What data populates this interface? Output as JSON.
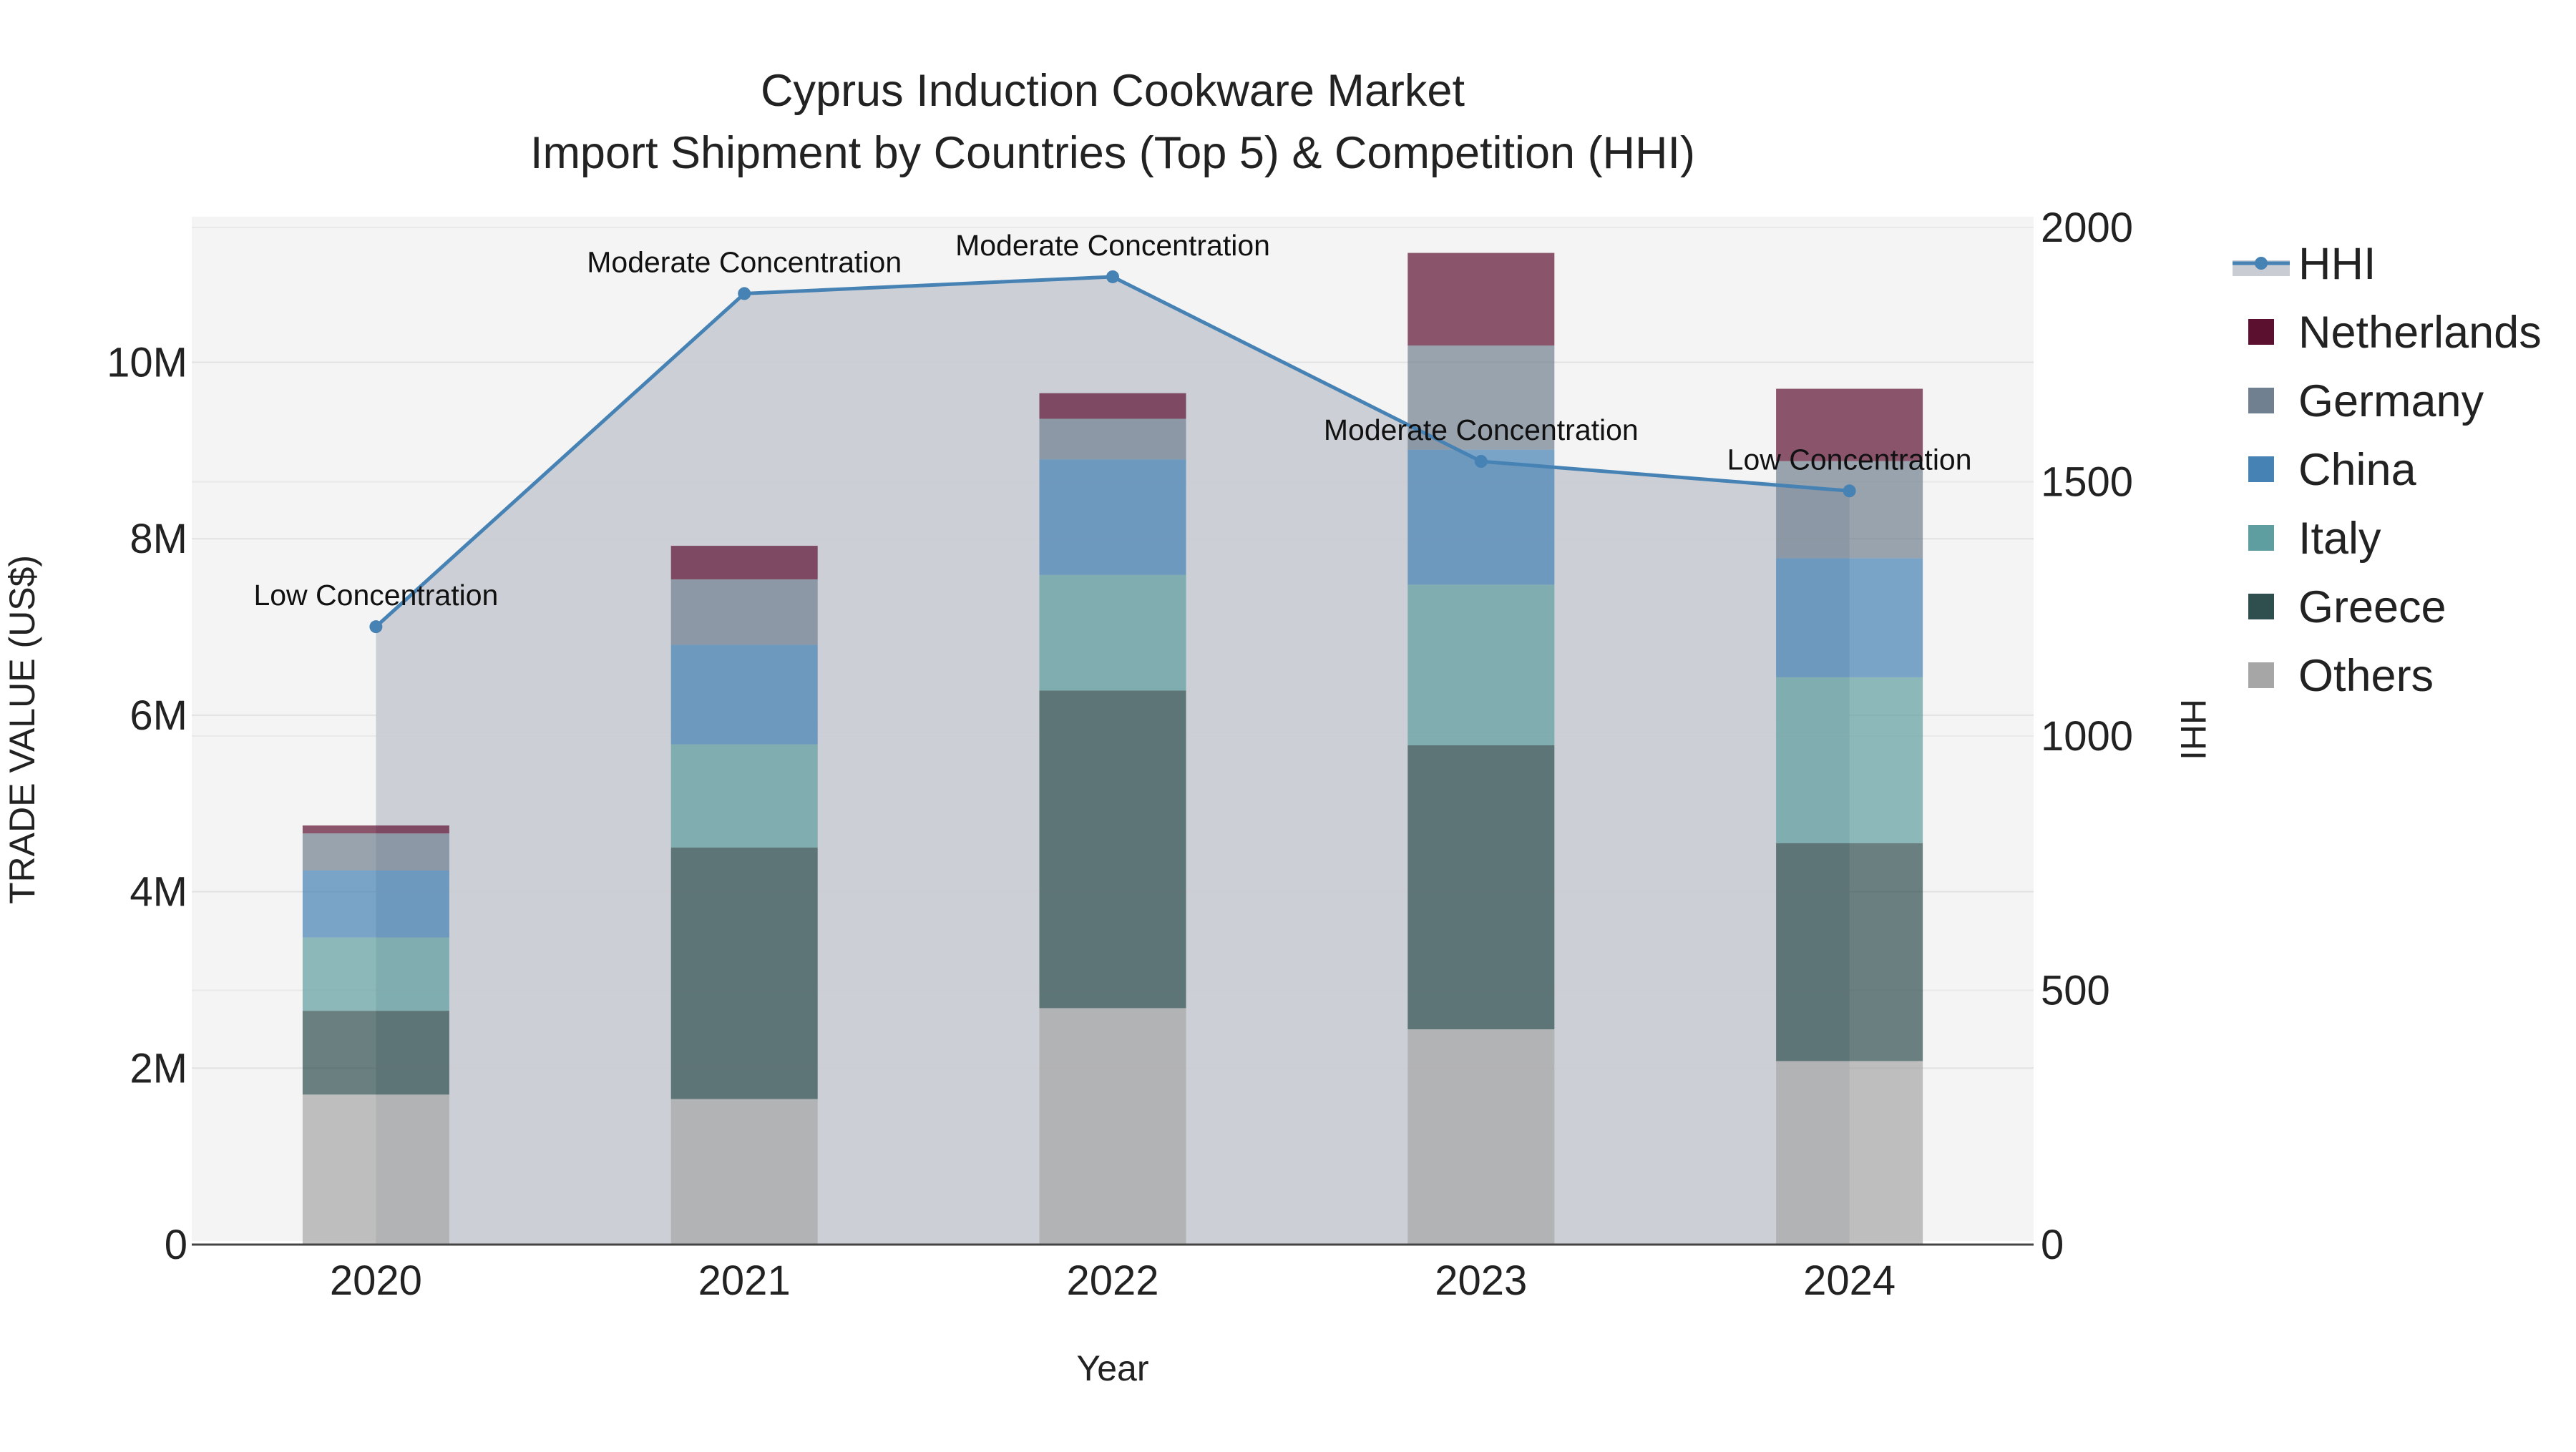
{
  "chart_data": {
    "type": "bar",
    "stacked": true,
    "title_line1": "Cyprus Induction Cookware Market",
    "title_line2": "Import Shipment by Countries (Top 5) & Competition (HHI)",
    "xlabel": "Year",
    "ylabel": "TRADE VALUE (US$)",
    "y2label": "HHI",
    "categories": [
      "2020",
      "2021",
      "2022",
      "2023",
      "2024"
    ],
    "ylim": [
      0,
      11650000
    ],
    "y_ticks": [
      0,
      2000000,
      4000000,
      6000000,
      8000000,
      10000000
    ],
    "y_tick_labels": [
      "0",
      "2M",
      "4M",
      "6M",
      "8M",
      "10M"
    ],
    "y2lim": [
      0,
      2000
    ],
    "y2_ticks": [
      0,
      500,
      1000,
      1500,
      2000
    ],
    "y2_tick_labels": [
      "0",
      "500",
      "1000",
      "1500",
      "2000"
    ],
    "series": [
      {
        "name": "Others",
        "color": "#a6a6a6",
        "values": [
          1700000,
          1650000,
          2680000,
          2440000,
          2080000
        ]
      },
      {
        "name": "Greece",
        "color": "#2f4f4f",
        "values": [
          950000,
          2850000,
          3600000,
          3220000,
          2470000
        ]
      },
      {
        "name": "Italy",
        "color": "#5f9ea0",
        "values": [
          830000,
          1170000,
          1310000,
          1820000,
          1880000
        ]
      },
      {
        "name": "China",
        "color": "#4682b4",
        "values": [
          760000,
          1130000,
          1310000,
          1530000,
          1350000
        ]
      },
      {
        "name": "Germany",
        "color": "#708090",
        "values": [
          420000,
          740000,
          460000,
          1180000,
          1100000
        ]
      },
      {
        "name": "Netherlands",
        "color": "#5c1030",
        "values": [
          90000,
          380000,
          290000,
          1050000,
          820000
        ]
      }
    ],
    "hhi": {
      "name": "HHI",
      "color": "#4682b4",
      "fill_color": "#c9ccd3",
      "values": [
        1215,
        1870,
        1903,
        1540,
        1482
      ],
      "labels": [
        "Low Concentration",
        "Moderate Concentration",
        "Moderate Concentration",
        "Moderate Concentration",
        "Low Concentration"
      ]
    },
    "legend": [
      "HHI",
      "Netherlands",
      "Germany",
      "China",
      "Italy",
      "Greece",
      "Others"
    ],
    "legend_position": "right",
    "grid": true
  }
}
